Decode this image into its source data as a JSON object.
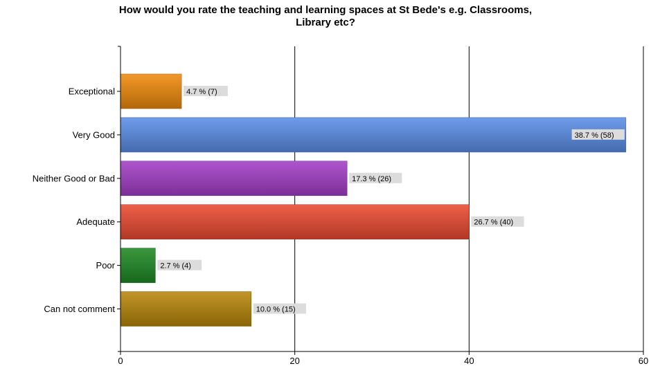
{
  "chart_data": {
    "type": "bar",
    "orientation": "horizontal",
    "title_lines": [
      "How would you rate the teaching and learning spaces at St Bede's e.g. Classrooms,",
      "Library etc?"
    ],
    "categories": [
      "Exceptional",
      "Very Good",
      "Neither Good or Bad",
      "Adequate",
      "Poor",
      "Can not comment"
    ],
    "values": [
      7,
      58,
      26,
      40,
      4,
      15
    ],
    "data_labels": [
      "4.7 % (7)",
      "38.7 % (58)",
      "17.3 % (26)",
      "26.7 % (40)",
      "2.7 % (4)",
      "10.0 % (15)"
    ],
    "colors": [
      "#f08a0c",
      "#5b8fe8",
      "#a43ec8",
      "#ec4a30",
      "#1f8a24",
      "#b8860b"
    ],
    "xlim": [
      0,
      60
    ],
    "xticks": [
      0,
      20,
      40,
      60
    ],
    "grid": true,
    "legend": "none"
  }
}
